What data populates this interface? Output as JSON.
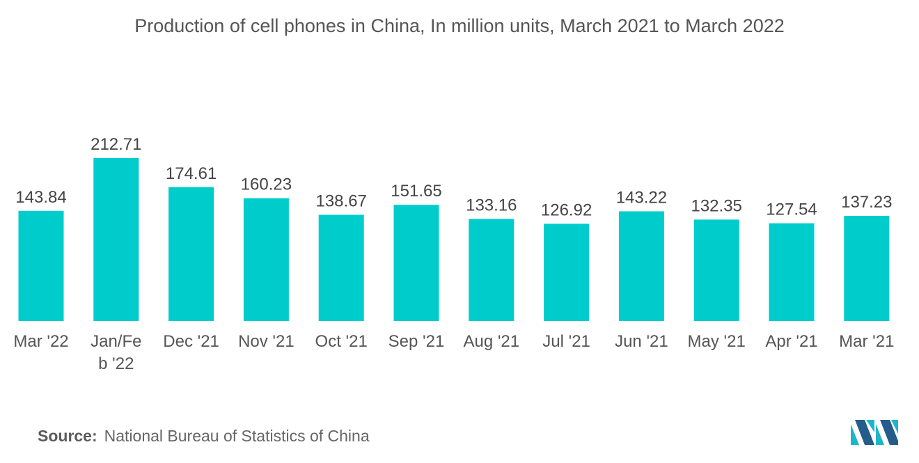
{
  "title": "Production of cell phones in China, In million units, March 2021 to March 2022",
  "source": {
    "label": "Source:",
    "text": "National Bureau of Statistics of China"
  },
  "logo": {
    "icon": "mordor-intelligence-logo-icon",
    "colors": [
      "#1fb5c9",
      "#245c8c"
    ]
  },
  "colors": {
    "bar": "#00cccc",
    "label_text": "#444444",
    "tick_text": "#555555"
  },
  "chart_data": {
    "type": "bar",
    "title": "Production of cell phones in China, In million units, March 2021 to March 2022",
    "xlabel": "",
    "ylabel": "",
    "ylim": [
      0,
      220
    ],
    "grid": false,
    "legend": "none",
    "categories": [
      "Mar '22",
      "Jan/Feb '22",
      "Dec '21",
      "Nov '21",
      "Oct '21",
      "Sep '21",
      "Aug '21",
      "Jul '21",
      "Jun '21",
      "May '21",
      "Apr '21",
      "Mar '21"
    ],
    "tick_lines": [
      [
        "Mar '22"
      ],
      [
        "Jan/Fe",
        "b '22"
      ],
      [
        "Dec '21"
      ],
      [
        "Nov '21"
      ],
      [
        "Oct '21"
      ],
      [
        "Sep '21"
      ],
      [
        "Aug '21"
      ],
      [
        "Jul '21"
      ],
      [
        "Jun '21"
      ],
      [
        "May '21"
      ],
      [
        "Apr '21"
      ],
      [
        "Mar '21"
      ]
    ],
    "values": [
      143.84,
      212.71,
      174.61,
      160.23,
      138.67,
      151.65,
      133.16,
      126.92,
      143.22,
      132.35,
      127.54,
      137.23
    ],
    "value_labels": [
      "143.84",
      "212.71",
      "174.61",
      "160.23",
      "138.67",
      "151.65",
      "133.16",
      "126.92",
      "143.22",
      "132.35",
      "127.54",
      "137.23"
    ]
  }
}
